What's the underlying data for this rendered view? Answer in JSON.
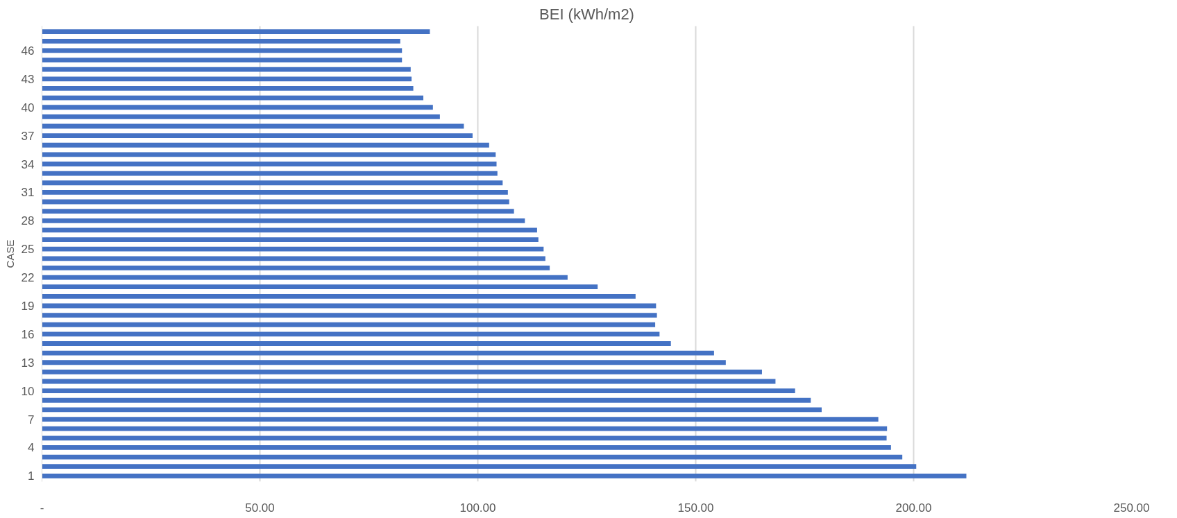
{
  "chart_data": {
    "type": "bar",
    "orientation": "horizontal",
    "title": "BEI (kWh/m2)",
    "ylabel": "CASE",
    "categories": [
      null,
      null,
      "46",
      null,
      null,
      "43",
      null,
      null,
      "40",
      null,
      null,
      "37",
      null,
      null,
      "34",
      null,
      null,
      "31",
      null,
      null,
      "28",
      null,
      null,
      "25",
      null,
      null,
      "22",
      null,
      null,
      "19",
      null,
      null,
      "16",
      null,
      null,
      "13",
      null,
      null,
      "10",
      null,
      null,
      "7",
      null,
      null,
      "4",
      null,
      null,
      "1"
    ],
    "values": [
      89.0,
      82.2,
      82.6,
      82.6,
      84.6,
      84.8,
      85.2,
      87.5,
      89.7,
      91.3,
      96.8,
      98.8,
      102.6,
      104.1,
      104.3,
      104.5,
      105.7,
      106.9,
      107.2,
      108.3,
      110.8,
      113.6,
      113.9,
      115.1,
      115.5,
      116.5,
      120.6,
      127.5,
      136.2,
      140.9,
      141.1,
      140.7,
      141.7,
      144.3,
      154.2,
      156.9,
      165.2,
      168.3,
      172.8,
      176.4,
      178.9,
      191.9,
      193.9,
      193.8,
      194.8,
      197.4,
      200.6,
      212.1
    ],
    "color": "#4472c4",
    "xlim": [
      0,
      250
    ],
    "xticks": [
      {
        "value": 0,
        "label": "-"
      },
      {
        "value": 50,
        "label": "50.00"
      },
      {
        "value": 100,
        "label": "100.00"
      },
      {
        "value": 150,
        "label": "150.00"
      },
      {
        "value": 200,
        "label": "200.00"
      },
      {
        "value": 250,
        "label": "250.00"
      }
    ],
    "grid": "x"
  }
}
